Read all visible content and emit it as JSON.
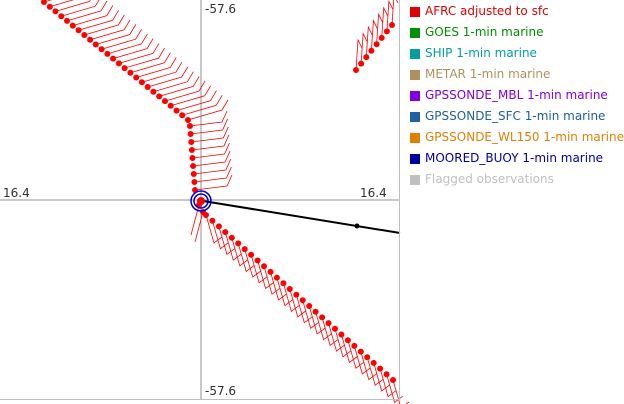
{
  "plot": {
    "axis_labels": {
      "top": "-57.6",
      "bottom": "-57.6",
      "left": "16.4",
      "right": "16.4"
    }
  },
  "legend": [
    {
      "label": "AFRC adjusted to sfc",
      "color": "#e00000"
    },
    {
      "label": "GOES 1-min marine",
      "color": "#009000"
    },
    {
      "label": "SHIP 1-min marine",
      "color": "#00a0a0"
    },
    {
      "label": "METAR 1-min marine",
      "color": "#b09060"
    },
    {
      "label": "GPSSONDE_MBL 1-min marine",
      "color": "#8000e0"
    },
    {
      "label": "GPSSONDE_SFC 1-min marine",
      "color": "#2060a0"
    },
    {
      "label": "GPSSONDE_WL150 1-min marine",
      "color": "#e08000"
    },
    {
      "label": "MOORED_BUOY 1-min marine",
      "color": "#0000a0"
    },
    {
      "label": "Flagged observations",
      "color": "#c0c0c0"
    }
  ],
  "colors": {
    "afrc": "#ff0000",
    "crosshair": "#909090",
    "track": "#000000",
    "center_ring": "#0000cc"
  }
}
